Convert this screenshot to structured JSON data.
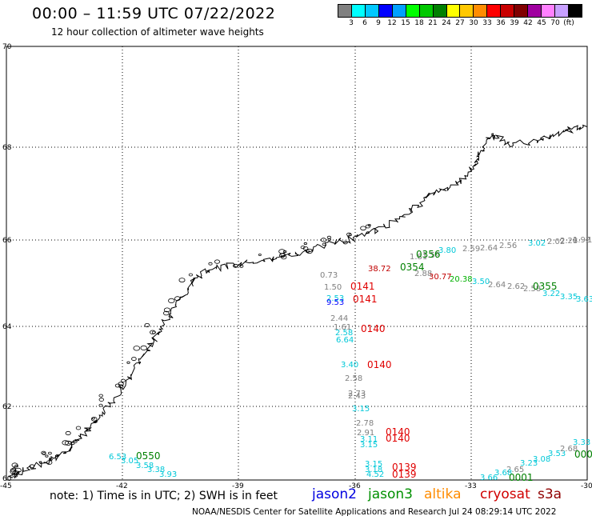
{
  "header": {
    "title": "00:00 – 11:59 UTC 07/22/2022",
    "subtitle": "12 hour collection of altimeter wave heights"
  },
  "legend": {
    "colors": [
      "#808080",
      "#00ffff",
      "#00c8ff",
      "#0000ff",
      "#00a0ff",
      "#00ff00",
      "#00c800",
      "#008000",
      "#ffff00",
      "#ffc800",
      "#ff8c00",
      "#ff0000",
      "#c80000",
      "#800000",
      "#a000a0",
      "#ff80ff",
      "#c8a0ff",
      "#000000"
    ],
    "labels": [
      "3",
      "6",
      "9",
      "12",
      "15",
      "18",
      "21",
      "24",
      "27",
      "30",
      "33",
      "36",
      "39",
      "42",
      "45",
      "70",
      "(ft)"
    ]
  },
  "map": {
    "lat_labels": [
      "70",
      "68",
      "66",
      "64",
      "62",
      "60"
    ],
    "lon_labels": [
      "-45",
      "-42",
      "-39",
      "-36",
      "-33",
      "-30"
    ],
    "obs": [
      {
        "t": "0.73",
        "c": "#808080"
      },
      {
        "t": "1.50",
        "c": "#808080"
      },
      {
        "t": "0141",
        "c": "#e00000"
      },
      {
        "t": "2.53",
        "c": "#00c8d8"
      },
      {
        "t": "0141",
        "c": "#e00000"
      },
      {
        "t": "9.53",
        "c": "#0000ff"
      },
      {
        "t": "2.44",
        "c": "#808080"
      },
      {
        "t": "1.61",
        "c": "#808080"
      },
      {
        "t": "0140",
        "c": "#e00000"
      },
      {
        "t": "2.58",
        "c": "#00c8d8"
      },
      {
        "t": "6.64",
        "c": "#00c8d8"
      },
      {
        "t": "3.40",
        "c": "#00c8d8"
      },
      {
        "t": "0140",
        "c": "#e00000"
      },
      {
        "t": "2.58",
        "c": "#808080"
      },
      {
        "t": "2.73",
        "c": "#808080"
      },
      {
        "t": "2.43",
        "c": "#808080"
      },
      {
        "t": "3.15",
        "c": "#00c8d8"
      },
      {
        "t": "2.78",
        "c": "#808080"
      },
      {
        "t": "0140",
        "c": "#e00000"
      },
      {
        "t": "2.91",
        "c": "#808080"
      },
      {
        "t": "3.11",
        "c": "#00c8d8"
      },
      {
        "t": "0140",
        "c": "#e00000"
      },
      {
        "t": "3.15",
        "c": "#00c8d8"
      },
      {
        "t": "3.15",
        "c": "#00c8d8"
      },
      {
        "t": "0139",
        "c": "#e00000"
      },
      {
        "t": "3.18",
        "c": "#00c8d8"
      },
      {
        "t": "0139",
        "c": "#e00000"
      },
      {
        "t": "4.52",
        "c": "#00c8d8"
      },
      {
        "t": "38.72",
        "c": "#c00000"
      },
      {
        "t": "0354",
        "c": "#008000"
      },
      {
        "t": "2.88",
        "c": "#808080"
      },
      {
        "t": "30.77",
        "c": "#c00000"
      },
      {
        "t": "20.38",
        "c": "#00b000"
      },
      {
        "t": "3.50",
        "c": "#00c8d8"
      },
      {
        "t": "2.64",
        "c": "#808080"
      },
      {
        "t": "2.62",
        "c": "#808080"
      },
      {
        "t": "2.58",
        "c": "#808080"
      },
      {
        "t": "0355",
        "c": "#008000"
      },
      {
        "t": "3.22",
        "c": "#00c8d8"
      },
      {
        "t": "3.35",
        "c": "#00c8d8"
      },
      {
        "t": "3.63",
        "c": "#00c8d8"
      },
      {
        "t": "1.81",
        "c": "#808080"
      },
      {
        "t": "1.59",
        "c": "#808080"
      },
      {
        "t": "0356",
        "c": "#008000"
      },
      {
        "t": "3.80",
        "c": "#00c8d8"
      },
      {
        "t": "2.59",
        "c": "#808080"
      },
      {
        "t": "2.64",
        "c": "#808080"
      },
      {
        "t": "2.56",
        "c": "#808080"
      },
      {
        "t": "3.02",
        "c": "#00c8d8"
      },
      {
        "t": "2.02",
        "c": "#808080"
      },
      {
        "t": "2.28",
        "c": "#808080"
      },
      {
        "t": "1.92",
        "c": "#808080"
      },
      {
        "t": "1.82",
        "c": "#808080"
      },
      {
        "t": "6.53",
        "c": "#00c8d8"
      },
      {
        "t": "0550",
        "c": "#008000"
      },
      {
        "t": "3.05",
        "c": "#00c8d8"
      },
      {
        "t": "3.58",
        "c": "#00c8d8"
      },
      {
        "t": "3.38",
        "c": "#00c8d8"
      },
      {
        "t": "3.93",
        "c": "#00c8d8"
      },
      {
        "t": "2.65",
        "c": "#808080"
      },
      {
        "t": "3.66",
        "c": "#00c8d8"
      },
      {
        "t": "3.68",
        "c": "#00c8d8"
      },
      {
        "t": "0001",
        "c": "#008000"
      },
      {
        "t": "3.23",
        "c": "#00c8d8"
      },
      {
        "t": "3.08",
        "c": "#00c8d8"
      },
      {
        "t": "3.53",
        "c": "#00c8d8"
      },
      {
        "t": "2.68",
        "c": "#808080"
      },
      {
        "t": "3.33",
        "c": "#00c8d8"
      },
      {
        "t": "000",
        "c": "#008000"
      }
    ]
  },
  "footer": {
    "note": "note: 1) Time is in UTC; 2) SWH is in feet",
    "satellites": [
      {
        "name": "jason2",
        "color": "#0000e0"
      },
      {
        "name": "jason3",
        "color": "#009000"
      },
      {
        "name": "altika",
        "color": "#ff8c00"
      },
      {
        "name": "cryosat",
        "color": "#d00000"
      },
      {
        "name": "s3a",
        "color": "#900000"
      }
    ],
    "credit": "NOAA/NESDIS Center for Satellite Applications and Research     Jul 24 08:29:14 UTC 2022"
  }
}
